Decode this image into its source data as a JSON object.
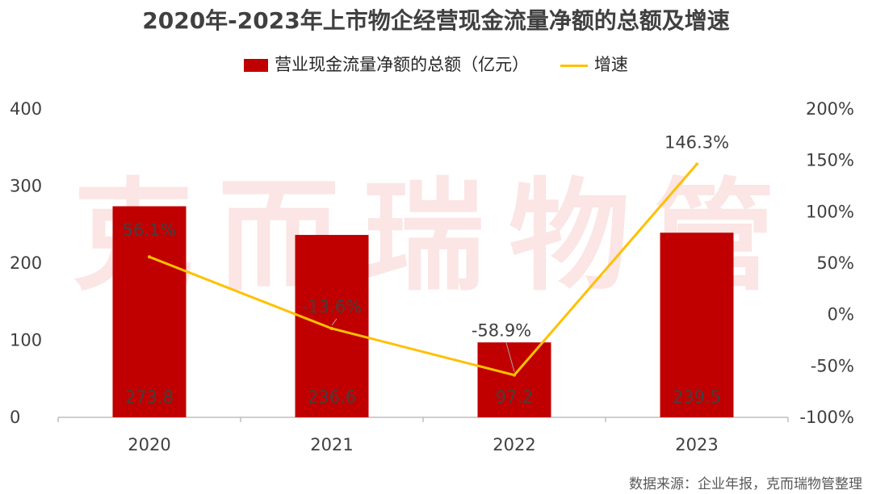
{
  "watermark": "克而瑞物管",
  "source": "数据来源：企业年报，克而瑞物管整理",
  "colors": {
    "bar": "#C00000",
    "line": "#FFC000",
    "axis": "#BFBFBF",
    "text": "#404040"
  },
  "chart_data": {
    "type": "bar",
    "title": "2020年-2023年上市物企经营现金流量净额的总额及增速",
    "categories": [
      "2020",
      "2021",
      "2022",
      "2023"
    ],
    "series": [
      {
        "name": "营业现金流量净额的总额（亿元）",
        "type": "bar",
        "axis": "left",
        "values": [
          273.8,
          236.6,
          97.2,
          239.5
        ],
        "labels": [
          "273.8",
          "236.6",
          "97.2",
          "239.5"
        ]
      },
      {
        "name": "增速",
        "type": "line",
        "axis": "right",
        "values": [
          56.1,
          -13.6,
          -58.9,
          146.3
        ],
        "labels": [
          "56.1%",
          "-13.6%",
          "-58.9%",
          "146.3%"
        ]
      }
    ],
    "y_left": {
      "ylim": [
        0,
        400
      ],
      "ticks": [
        "0",
        "100",
        "200",
        "300",
        "400"
      ]
    },
    "y_right": {
      "ylim": [
        -100,
        200
      ],
      "ticks": [
        "-100%",
        "-50%",
        "0%",
        "50%",
        "100%",
        "150%",
        "200%"
      ]
    },
    "legend": "top",
    "grid": false
  }
}
